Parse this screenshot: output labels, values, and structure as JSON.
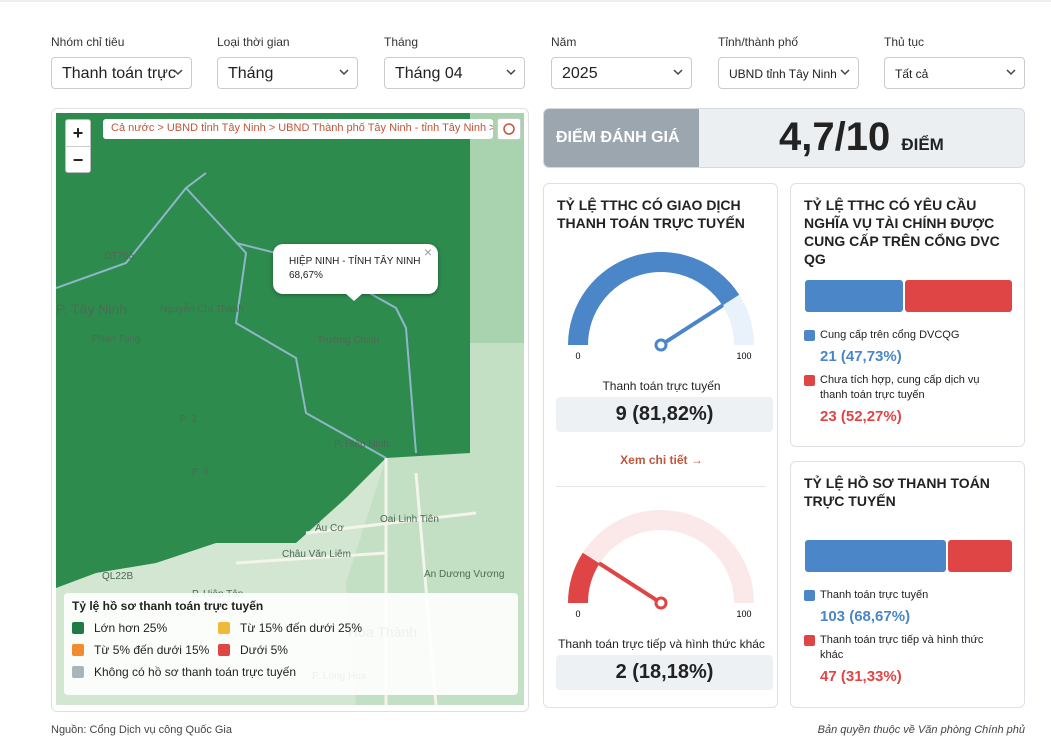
{
  "filters": [
    {
      "label": "Nhóm chỉ tiêu",
      "value": "Thanh toán trực"
    },
    {
      "label": "Loại thời gian",
      "value": "Tháng"
    },
    {
      "label": "Tháng",
      "value": "Tháng 04"
    },
    {
      "label": "Năm",
      "value": "2025"
    },
    {
      "label": "Tỉnh/thành phố",
      "value": "UBND tỉnh Tây Ninh"
    },
    {
      "label": "Thủ tục",
      "value": "Tất cả"
    }
  ],
  "map": {
    "breadcrumb": "Cả nước > UBND tỉnh Tây Ninh > UBND Thành phố Tây Ninh - tỉnh Tây Ninh > P. Hiệp Ninh - tỉnh Tây Ninh",
    "zoom_in": "+",
    "zoom_out": "−",
    "popup": {
      "title": "HIỆP NINH - TỈNH TÂY NINH",
      "value": "68,67%",
      "close": "×"
    },
    "places": [
      "P. Tây Ninh",
      "DT785",
      "Nguyễn Chí Thanh",
      "Trường Chinh",
      "P. 3",
      "P. Hiệp Ninh",
      "P. 4",
      "Âu Cơ",
      "Oai Linh Tiên",
      "Châu Văn Liêm",
      "QL22B",
      "P. Hiệp Tân",
      "Hòa Thành",
      "P. Long Hoa",
      "An Dương Vương",
      "Phan Tung"
    ],
    "legend": {
      "title": "Tỷ lệ hồ sơ thanh toán trực tuyến",
      "items": [
        {
          "label": "Lớn hơn 25%",
          "color": "#1e7b45"
        },
        {
          "label": "Từ 15% đến dưới 25%",
          "color": "#f0b93a"
        },
        {
          "label": "Từ 5% đến dưới 15%",
          "color": "#f28b30"
        },
        {
          "label": "Dưới 5%",
          "color": "#e04545"
        },
        {
          "label": "Không có hồ sơ thanh toán trực tuyến",
          "color": "#a9b4bd"
        }
      ]
    }
  },
  "score": {
    "label": "ĐIỂM ĐÁNH GIÁ",
    "value": "4,7/10",
    "unit": "ĐIỂM"
  },
  "gauge_card": {
    "title": "TỶ LỆ TTHC CÓ GIAO DỊCH THANH TOÁN TRỰC TUYẾN",
    "link": "Xem chi tiết →",
    "gauges": [
      {
        "min": 0,
        "max": 100,
        "value": 81.82,
        "color": "#4a86c8",
        "track": "#e9f1fa",
        "name": "Thanh toán trực tuyến",
        "value_label": "9 (81,82%)"
      },
      {
        "min": 0,
        "max": 100,
        "value": 18.18,
        "color": "#e04545",
        "track": "#fbe9ea",
        "name": "Thanh toán trực tiếp và hình thức khác",
        "value_label": "2 (18,18%)"
      }
    ]
  },
  "bar_cards": [
    {
      "title": "TỶ LỆ TTHC CÓ YÊU CẦU NGHĨA VỤ TÀI CHÍNH ĐƯỢC CUNG CẤP TRÊN CỔNG DVC QG",
      "segments": [
        {
          "name": "Cung cấp trên cổng DVCQG",
          "value": 47.73,
          "value_label": "21 (47,73%)",
          "color": "#4a86c8"
        },
        {
          "name": "Chưa tích hợp, cung cấp dịch vụ thanh toán trực tuyến",
          "value": 52.27,
          "value_label": "23 (52,27%)",
          "color": "#e04545"
        }
      ]
    },
    {
      "title": "TỶ LỆ HỒ SƠ THANH TOÁN TRỰC TUYẾN",
      "segments": [
        {
          "name": "Thanh toán trực tuyến",
          "value": 68.67,
          "value_label": "103 (68,67%)",
          "color": "#4a86c8"
        },
        {
          "name": "Thanh toán trực tiếp và hình thức khác",
          "value": 31.33,
          "value_label": "47 (31,33%)",
          "color": "#e04545"
        }
      ]
    }
  ],
  "footer": {
    "source": "Nguồn: Cổng Dịch vụ công Quốc Gia",
    "copyright": "Bản quyền thuộc về Văn phòng Chính phủ"
  }
}
